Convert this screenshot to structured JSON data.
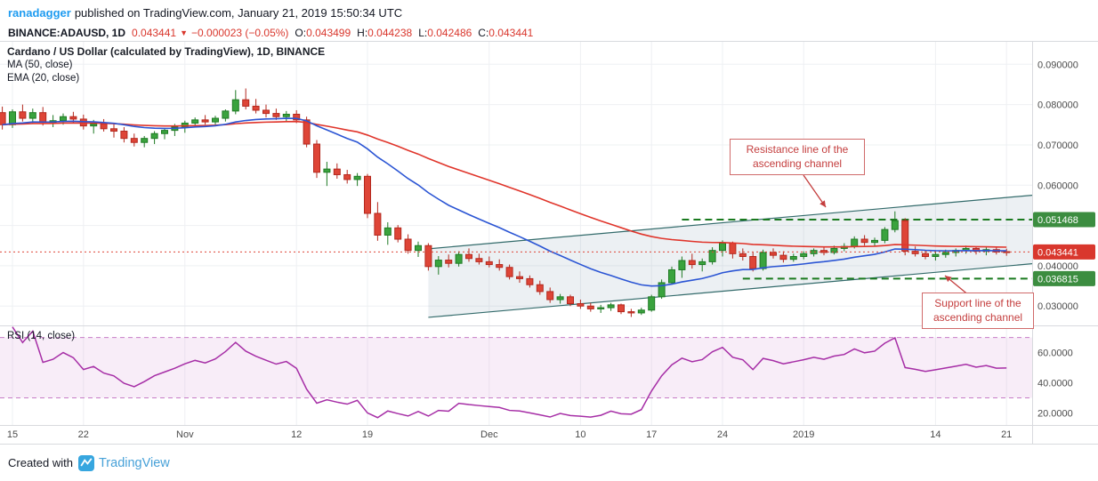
{
  "header": {
    "username": "ranadagger",
    "published_text": " published on TradingView.com, January 21, 2019 15:50:34 UTC"
  },
  "symbol_bar": {
    "symbol": "BINANCE:ADAUSD, 1D",
    "last_price": "0.043441",
    "direction": "▼",
    "change": "−0.000023 (−0.05%)",
    "ohlc": [
      {
        "label": "O:",
        "value": "0.043499"
      },
      {
        "label": "H:",
        "value": "0.044238"
      },
      {
        "label": "L:",
        "value": "0.042486"
      },
      {
        "label": "C:",
        "value": "0.043441"
      }
    ]
  },
  "legend": {
    "title": "Cardano / US Dollar (calculated by TradingView), 1D, BINANCE",
    "ma": "MA (50, close)",
    "ema": "EMA (20, close)",
    "rsi": "RSI (14, close)"
  },
  "annotations": {
    "resistance": "Resistance line of the ascending channel",
    "support": "Support line of the ascending channel"
  },
  "footer": {
    "created_with": "Created with",
    "brand": "TradingView"
  },
  "colors": {
    "up": "#3aa33e",
    "up_border": "#1f7a24",
    "down": "#de4537",
    "down_border": "#b3281e",
    "ma": "#e0352b",
    "ema": "#2b55d4",
    "channel": "#336b6b",
    "channel_fill": "rgba(130,155,175,0.15)",
    "level": "#1a7a1f",
    "rsi": "#a62ea6",
    "rsi_band": "rgba(216,154,216,0.18)",
    "rsi_band_border": "#c77dc7",
    "badge_green": "#3c8d40",
    "badge_red": "#d9372d",
    "grid": "#eef0f3",
    "separator": "#d8dade",
    "axis_text": "#4a4a4a",
    "annotation": "#c43e3e",
    "accent_username": "#1e9bf0",
    "brand_blue": "#37a6df"
  },
  "chart_data": {
    "type": "candlestick",
    "title": "Cardano / US Dollar (calculated by TradingView), 1D, BINANCE",
    "symbol": "BINANCE:ADAUSD",
    "interval": "1D",
    "start_date": "2018-10-14",
    "indicators": {
      "ma_period": 50,
      "ema_period": 20,
      "rsi_period": 14
    },
    "x_axis": {
      "ticks": [
        [
          1,
          "15"
        ],
        [
          8,
          "22"
        ],
        [
          18,
          "Nov"
        ],
        [
          29,
          "12"
        ],
        [
          36,
          "19"
        ],
        [
          48,
          "Dec"
        ],
        [
          57,
          "10"
        ],
        [
          64,
          "17"
        ],
        [
          71,
          "24"
        ],
        [
          79,
          "2019"
        ],
        [
          92,
          "14"
        ],
        [
          99,
          "21"
        ]
      ]
    },
    "price_axis": {
      "range": [
        0.0252,
        0.0958
      ],
      "grid": [
        0.03,
        0.04,
        0.05,
        0.06,
        0.07,
        0.08,
        0.09
      ],
      "labels": [
        [
          0.09,
          "0.090000"
        ],
        [
          0.08,
          "0.080000"
        ],
        [
          0.07,
          "0.070000"
        ],
        [
          0.06,
          "0.060000"
        ],
        [
          0.04,
          "0.040000"
        ],
        [
          0.03,
          "0.030000"
        ]
      ],
      "badges": [
        [
          0.051468,
          "0.051468",
          "green"
        ],
        [
          0.043441,
          "0.043441",
          "red"
        ],
        [
          0.036815,
          "0.036815",
          "green"
        ]
      ]
    },
    "rsi_axis": {
      "range": [
        12,
        78
      ],
      "band": [
        30,
        70
      ],
      "labels": [
        [
          60,
          "60.0000"
        ],
        [
          40,
          "40.0000"
        ],
        [
          20,
          "20.0000"
        ]
      ]
    },
    "levels": {
      "resistance": {
        "value": 0.051468,
        "start_index": 67
      },
      "support": {
        "value": 0.036815,
        "start_index": 73
      },
      "last_price": 0.043441
    },
    "channel": {
      "start_index": 42,
      "support_start": 0.0272,
      "support_end": 0.0405,
      "resistance_start": 0.0442,
      "resistance_end": 0.0575
    },
    "candles": [
      [
        0.078,
        0.0795,
        0.0738,
        0.075
      ],
      [
        0.075,
        0.0788,
        0.0742,
        0.0782
      ],
      [
        0.0782,
        0.08,
        0.0758,
        0.0766
      ],
      [
        0.0766,
        0.079,
        0.0754,
        0.078
      ],
      [
        0.078,
        0.0794,
        0.0748,
        0.0756
      ],
      [
        0.0756,
        0.0774,
        0.0744,
        0.076
      ],
      [
        0.076,
        0.0778,
        0.075,
        0.077
      ],
      [
        0.077,
        0.0782,
        0.0756,
        0.0764
      ],
      [
        0.0764,
        0.0775,
        0.0738,
        0.0747
      ],
      [
        0.0747,
        0.0762,
        0.0728,
        0.0752
      ],
      [
        0.0752,
        0.0764,
        0.0733,
        0.074
      ],
      [
        0.074,
        0.0754,
        0.0718,
        0.0734
      ],
      [
        0.0734,
        0.0744,
        0.0706,
        0.0716
      ],
      [
        0.0716,
        0.0728,
        0.0696,
        0.0706
      ],
      [
        0.0706,
        0.0722,
        0.0694,
        0.0716
      ],
      [
        0.0716,
        0.0734,
        0.0702,
        0.0728
      ],
      [
        0.0728,
        0.0742,
        0.0714,
        0.0736
      ],
      [
        0.0736,
        0.0752,
        0.0722,
        0.0744
      ],
      [
        0.0744,
        0.076,
        0.073,
        0.0754
      ],
      [
        0.0754,
        0.0768,
        0.0744,
        0.0762
      ],
      [
        0.0762,
        0.0774,
        0.075,
        0.0757
      ],
      [
        0.0757,
        0.0772,
        0.0748,
        0.0766
      ],
      [
        0.0766,
        0.0788,
        0.0758,
        0.0784
      ],
      [
        0.0784,
        0.0836,
        0.0776,
        0.0812
      ],
      [
        0.0812,
        0.084,
        0.0788,
        0.0796
      ],
      [
        0.0796,
        0.0814,
        0.0778,
        0.0786
      ],
      [
        0.0786,
        0.08,
        0.0768,
        0.0778
      ],
      [
        0.0778,
        0.079,
        0.0762,
        0.077
      ],
      [
        0.077,
        0.0784,
        0.0758,
        0.0776
      ],
      [
        0.0776,
        0.0786,
        0.0754,
        0.0762
      ],
      [
        0.0762,
        0.077,
        0.0694,
        0.0702
      ],
      [
        0.0702,
        0.0712,
        0.0618,
        0.0632
      ],
      [
        0.0632,
        0.0658,
        0.0598,
        0.064
      ],
      [
        0.064,
        0.0654,
        0.0616,
        0.0626
      ],
      [
        0.0626,
        0.0638,
        0.0604,
        0.0614
      ],
      [
        0.0614,
        0.063,
        0.0598,
        0.0622
      ],
      [
        0.0622,
        0.0628,
        0.0518,
        0.053
      ],
      [
        0.053,
        0.0558,
        0.0462,
        0.0476
      ],
      [
        0.0476,
        0.0508,
        0.0452,
        0.0494
      ],
      [
        0.0494,
        0.0501,
        0.0458,
        0.0466
      ],
      [
        0.0466,
        0.0478,
        0.043,
        0.0438
      ],
      [
        0.0438,
        0.046,
        0.0422,
        0.045
      ],
      [
        0.045,
        0.0456,
        0.0388,
        0.0398
      ],
      [
        0.0398,
        0.0424,
        0.0378,
        0.0414
      ],
      [
        0.0414,
        0.0428,
        0.0396,
        0.0406
      ],
      [
        0.0406,
        0.0436,
        0.0398,
        0.0428
      ],
      [
        0.0428,
        0.0443,
        0.041,
        0.0418
      ],
      [
        0.0418,
        0.043,
        0.0403,
        0.041
      ],
      [
        0.041,
        0.0423,
        0.0396,
        0.0403
      ],
      [
        0.0403,
        0.0416,
        0.0388,
        0.0396
      ],
      [
        0.0396,
        0.0403,
        0.0366,
        0.0373
      ],
      [
        0.0373,
        0.0386,
        0.0358,
        0.0368
      ],
      [
        0.0368,
        0.0376,
        0.0346,
        0.0353
      ],
      [
        0.0353,
        0.0363,
        0.0328,
        0.0336
      ],
      [
        0.0336,
        0.0346,
        0.0308,
        0.0316
      ],
      [
        0.0316,
        0.033,
        0.0306,
        0.0323
      ],
      [
        0.0323,
        0.0328,
        0.03,
        0.0306
      ],
      [
        0.0306,
        0.0316,
        0.0293,
        0.03
      ],
      [
        0.03,
        0.0308,
        0.0286,
        0.0293
      ],
      [
        0.0293,
        0.0303,
        0.0283,
        0.0296
      ],
      [
        0.0296,
        0.0308,
        0.0288,
        0.0303
      ],
      [
        0.0303,
        0.0306,
        0.028,
        0.0286
      ],
      [
        0.0286,
        0.0293,
        0.0273,
        0.0283
      ],
      [
        0.0283,
        0.0296,
        0.0278,
        0.029
      ],
      [
        0.029,
        0.0328,
        0.0286,
        0.0323
      ],
      [
        0.0323,
        0.0366,
        0.0318,
        0.0358
      ],
      [
        0.0358,
        0.0398,
        0.0353,
        0.039
      ],
      [
        0.039,
        0.0423,
        0.037,
        0.0413
      ],
      [
        0.0413,
        0.043,
        0.0393,
        0.0403
      ],
      [
        0.0403,
        0.0418,
        0.0386,
        0.041
      ],
      [
        0.041,
        0.0446,
        0.0403,
        0.0438
      ],
      [
        0.0438,
        0.0463,
        0.0423,
        0.0456
      ],
      [
        0.0456,
        0.046,
        0.0418,
        0.043
      ],
      [
        0.043,
        0.0443,
        0.0413,
        0.0423
      ],
      [
        0.0423,
        0.0433,
        0.0386,
        0.0393
      ],
      [
        0.0393,
        0.044,
        0.0388,
        0.0433
      ],
      [
        0.0433,
        0.0443,
        0.0418,
        0.0426
      ],
      [
        0.0426,
        0.0436,
        0.0408,
        0.0416
      ],
      [
        0.0416,
        0.043,
        0.041,
        0.0423
      ],
      [
        0.0423,
        0.0436,
        0.0416,
        0.043
      ],
      [
        0.043,
        0.0443,
        0.0423,
        0.0438
      ],
      [
        0.0438,
        0.0446,
        0.0426,
        0.0433
      ],
      [
        0.0433,
        0.045,
        0.0428,
        0.0443
      ],
      [
        0.0443,
        0.0456,
        0.0436,
        0.0448
      ],
      [
        0.0448,
        0.0473,
        0.0443,
        0.0466
      ],
      [
        0.0466,
        0.0476,
        0.045,
        0.0458
      ],
      [
        0.0458,
        0.047,
        0.0448,
        0.0463
      ],
      [
        0.0463,
        0.0496,
        0.0456,
        0.049
      ],
      [
        0.049,
        0.0535,
        0.0483,
        0.0512
      ],
      [
        0.0512,
        0.0518,
        0.0426,
        0.0436
      ],
      [
        0.0436,
        0.0448,
        0.0423,
        0.043
      ],
      [
        0.043,
        0.0438,
        0.0416,
        0.0423
      ],
      [
        0.0423,
        0.0436,
        0.0413,
        0.0428
      ],
      [
        0.0428,
        0.044,
        0.042,
        0.0433
      ],
      [
        0.0433,
        0.0443,
        0.0423,
        0.0438
      ],
      [
        0.0438,
        0.045,
        0.043,
        0.0443
      ],
      [
        0.0443,
        0.0448,
        0.0428,
        0.0436
      ],
      [
        0.0436,
        0.0446,
        0.0426,
        0.044
      ],
      [
        0.044,
        0.0446,
        0.0428,
        0.0434
      ],
      [
        0.043499,
        0.044238,
        0.042486,
        0.043441
      ]
    ]
  }
}
